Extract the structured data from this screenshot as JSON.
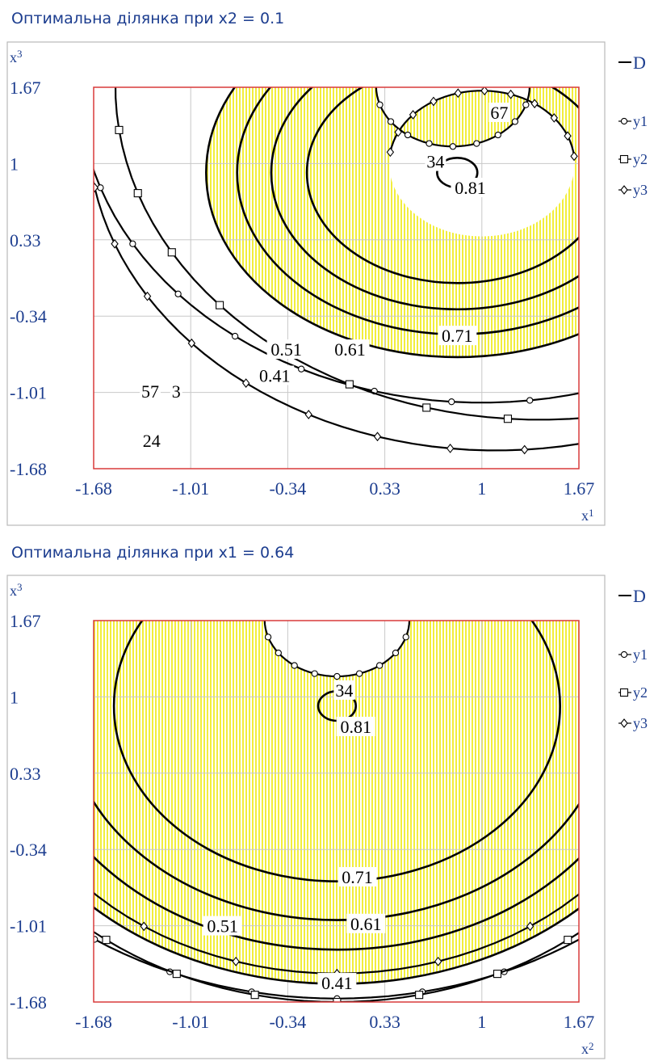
{
  "chart_data": [
    {
      "type": "contour",
      "title": "Оптимальна ділянка при x2 = 0.1",
      "xlabel": {
        "base": "x",
        "sub": "1"
      },
      "ylabel": {
        "base": "x",
        "sub": "3"
      },
      "xlim": [
        -1.68,
        1.67
      ],
      "ylim": [
        -1.68,
        1.67
      ],
      "x_ticks": [
        "-1.68",
        "-1.01",
        "-0.34",
        "0.33",
        "1",
        "1.67"
      ],
      "y_ticks": [
        "1.67",
        "1",
        "0.33",
        "-0.34",
        "-1.01",
        "-1.68"
      ],
      "grid": true,
      "legend_placement": "top-right outside",
      "legend": [
        "D",
        "y1",
        "y2",
        "y3"
      ],
      "fill_color": "#f2ee3c",
      "center": [
        0.83,
        0.92
      ],
      "radius_scale": [
        1.07,
        1.0
      ],
      "d_levels": [
        {
          "level": 0.41,
          "r": 1.62,
          "label": "0.41",
          "label_at": [
            -0.43,
            -0.86
          ]
        },
        {
          "level": 0.51,
          "r": 1.42,
          "label": "0.51",
          "label_at": [
            -0.35,
            -0.63
          ]
        },
        {
          "level": 0.61,
          "r": 1.2,
          "label": "0.61",
          "label_at": [
            0.09,
            -0.63
          ]
        },
        {
          "level": 0.71,
          "r": 0.97,
          "label": "0.71",
          "label_at": [
            0.83,
            -0.51
          ]
        },
        {
          "level": 0.81,
          "r": 0.13,
          "label": "0.81",
          "label_at": [
            0.92,
            0.79
          ]
        }
      ],
      "y1": {
        "center": [
          0.8,
          1.68
        ],
        "r": 0.53,
        "label": "34",
        "label_at": [
          0.68,
          1.02
        ],
        "outer_r": 2.78,
        "outer_label": "24",
        "outer_label_at": [
          -1.28,
          -1.43
        ]
      },
      "y2": {
        "center": [
          1.4,
          1.68
        ],
        "r": 2.93,
        "label": "57",
        "label_at": [
          -1.29,
          -1.0
        ]
      },
      "y3": {
        "center": [
          1.0,
          1.0
        ],
        "r": 0.64,
        "label": "67",
        "label_at": [
          1.12,
          1.45
        ],
        "outer_r": 2.82,
        "outer_label": "3",
        "outer_label_at": [
          -1.11,
          -1.0
        ]
      }
    },
    {
      "type": "contour",
      "title": "Оптимальна ділянка при x1 = 0.64",
      "xlabel": {
        "base": "x",
        "sub": "2"
      },
      "ylabel": {
        "base": "x",
        "sub": "3"
      },
      "xlim": [
        -1.68,
        1.67
      ],
      "ylim": [
        -1.68,
        1.67
      ],
      "x_ticks": [
        "-1.68",
        "-1.01",
        "-0.34",
        "0.33",
        "1",
        "1.67"
      ],
      "y_ticks": [
        "1.67",
        "1",
        "0.33",
        "-0.34",
        "-1.01",
        "-1.68"
      ],
      "grid": true,
      "legend_placement": "top-right outside",
      "legend": [
        "D",
        "y1",
        "y2",
        "y3"
      ],
      "fill_color": "#f2ee3c",
      "center": [
        0.0,
        0.92
      ],
      "radius_scale": [
        1.0,
        1.0
      ],
      "d_levels": [
        {
          "level": 0.41,
          "r": 2.44,
          "label": "0.41",
          "label_at": [
            0.0,
            -1.51
          ]
        },
        {
          "level": 0.51,
          "r": 2.14,
          "label": "0.51",
          "label_at": [
            -0.79,
            -1.01
          ]
        },
        {
          "level": 0.61,
          "r": 1.88,
          "label": "0.61",
          "label_at": [
            0.2,
            -0.99
          ]
        },
        {
          "level": 0.71,
          "r": 1.54,
          "label": "0.71",
          "label_at": [
            0.14,
            -0.58
          ]
        },
        {
          "level": 0.81,
          "r": 0.13,
          "label": "0.81",
          "label_at": [
            0.13,
            0.74
          ]
        }
      ],
      "y1": {
        "center": [
          0.0,
          1.68
        ],
        "r": 0.5,
        "label": "34",
        "label_at": [
          0.05,
          1.06
        ]
      },
      "y2": {
        "r": 2.6
      },
      "y3": {
        "r": 2.35
      }
    }
  ]
}
